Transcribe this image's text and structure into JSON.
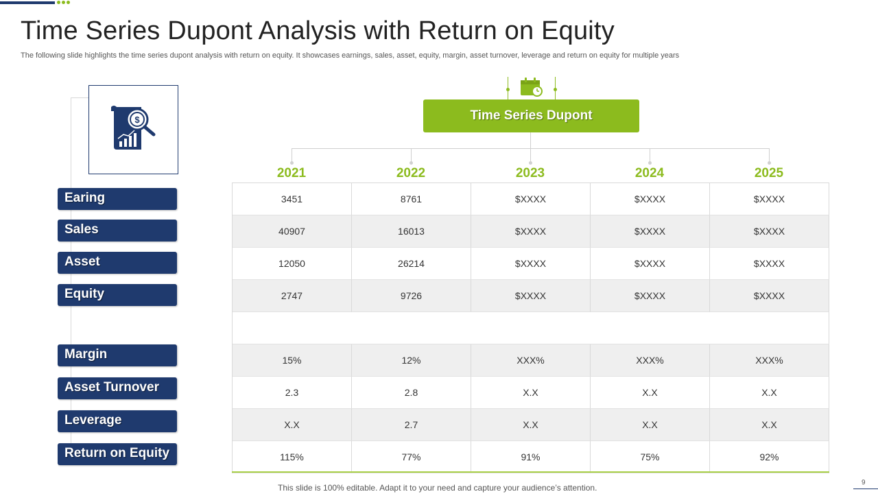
{
  "title": "Time Series Dupont Analysis with Return on Equity",
  "subtitle": "The following slide highlights the time series dupont analysis with return on equity. It showcases earnings, sales, asset, equity, margin, asset turnover, leverage and return on equity for multiple years",
  "header": "Time Series Dupont",
  "years": [
    "2021",
    "2022",
    "2023",
    "2024",
    "2025"
  ],
  "labels": [
    "Earing",
    "Sales",
    "Asset",
    "Equity",
    "Margin",
    "Asset Turnover",
    "Leverage",
    "Return on Equity"
  ],
  "rows": [
    [
      "3451",
      "8761",
      "$XXXX",
      "$XXXX",
      "$XXXX"
    ],
    [
      "40907",
      "16013",
      "$XXXX",
      "$XXXX",
      "$XXXX"
    ],
    [
      "12050",
      "26214",
      "$XXXX",
      "$XXXX",
      "$XXXX"
    ],
    [
      "2747",
      "9726",
      "$XXXX",
      "$XXXX",
      "$XXXX"
    ],
    [
      "",
      "",
      "",
      "",
      ""
    ],
    [
      "15%",
      "12%",
      "XXX%",
      "XXX%",
      "XXX%"
    ],
    [
      "2.3",
      "2.8",
      "X.X",
      "X.X",
      "X.X"
    ],
    [
      "X.X",
      "2.7",
      "X.X",
      "X.X",
      "X.X"
    ],
    [
      "115%",
      "77%",
      "91%",
      "75%",
      "92%"
    ]
  ],
  "footer": "This slide is 100% editable. Adapt it to your need and capture your audience’s attention.",
  "page_number": "9",
  "icons": {
    "analysis": "financial-report-magnifier-icon",
    "calendar": "calendar-clock-icon"
  },
  "colors": {
    "navy": "#1f3a6e",
    "green": "#8cbb1e"
  }
}
